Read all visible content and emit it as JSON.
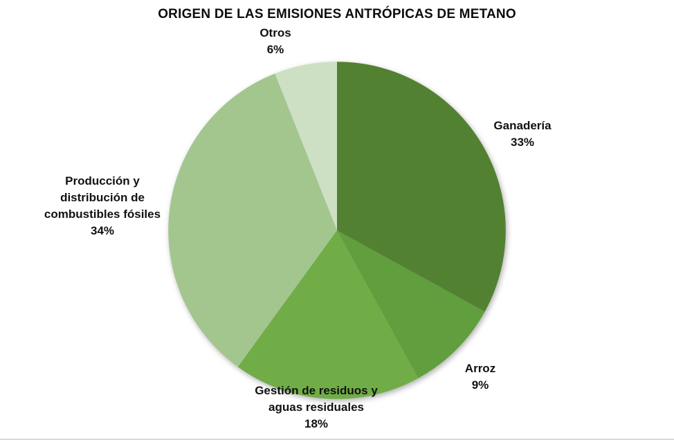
{
  "title": "ORIGEN DE LAS EMISIONES ANTRÓPICAS DE METANO",
  "chart_data": {
    "type": "pie",
    "title": "ORIGEN DE LAS EMISIONES ANTRÓPICAS DE METANO",
    "legend": "none",
    "data_labels": "category name and percentage, outside slices",
    "start_angle_deg": 0,
    "direction": "clockwise",
    "background_color": "#ffffff",
    "slices": [
      {
        "label": "Ganadería",
        "value_pct": 33,
        "pct_label": "33%",
        "color": "#538132",
        "label_lines": [
          "Ganadería"
        ]
      },
      {
        "label": "Arroz",
        "value_pct": 9,
        "pct_label": "9%",
        "color": "#609E3E",
        "label_lines": [
          "Arroz"
        ]
      },
      {
        "label": "Gestión de residuos y aguas residuales",
        "value_pct": 18,
        "pct_label": "18%",
        "color": "#70AD47",
        "label_lines": [
          "Gestión de residuos y",
          "aguas residuales"
        ]
      },
      {
        "label": "Producción y distribución de combustibles fósiles",
        "value_pct": 34,
        "pct_label": "34%",
        "color": "#A3C68F",
        "label_lines": [
          "Producción y",
          "distribución de",
          "combustibles fósiles"
        ]
      },
      {
        "label": "Otros",
        "value_pct": 6,
        "pct_label": "6%",
        "color": "#CDE0C3",
        "label_lines": [
          "Otros"
        ]
      }
    ]
  }
}
